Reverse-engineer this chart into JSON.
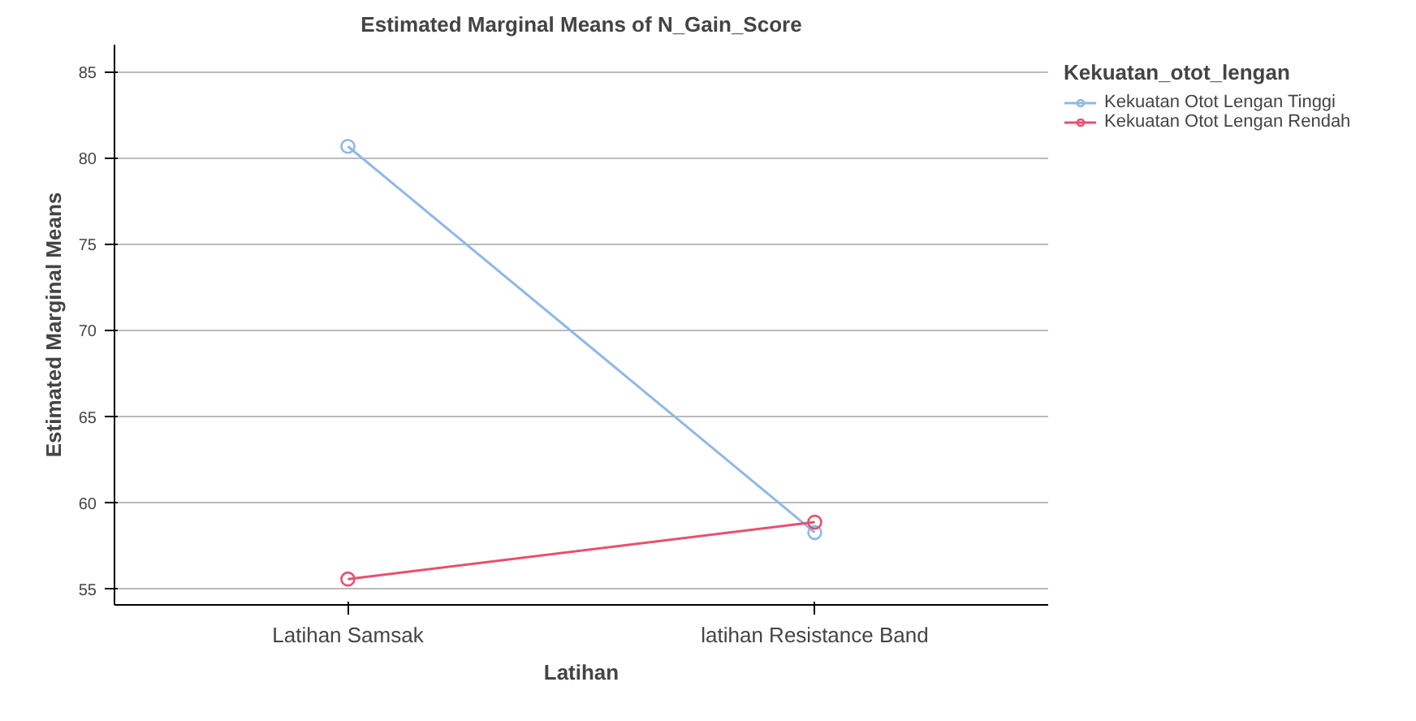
{
  "chart_data": {
    "type": "line",
    "title": "Estimated Marginal Means of N_Gain_Score",
    "xlabel": "Latihan",
    "ylabel": "Estimated Marginal Means",
    "legend_title": "Kekuatan_otot_lengan",
    "categories": [
      "Latihan Samsak",
      "latihan Resistance Band"
    ],
    "series": [
      {
        "name": "Kekuatan Otot Lengan Tinggi",
        "color": "#8fb8e8",
        "values": [
          80.7,
          58.3
        ]
      },
      {
        "name": "Kekuatan Otot Lengan Rendah",
        "color": "#e8506e",
        "values": [
          55.6,
          58.9
        ]
      }
    ],
    "ylim": [
      54.1,
      86.6
    ],
    "yticks": [
      55,
      60,
      65,
      70,
      75,
      80,
      85
    ],
    "grid": "y",
    "legend": "top right",
    "marker": "circle",
    "line_style": "solid"
  }
}
